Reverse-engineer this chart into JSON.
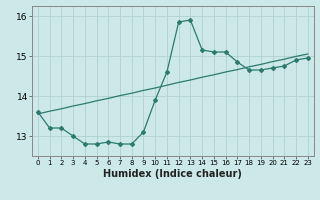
{
  "xlabel": "Humidex (Indice chaleur)",
  "ylabel": "",
  "x_values": [
    0,
    1,
    2,
    3,
    4,
    5,
    6,
    7,
    8,
    9,
    10,
    11,
    12,
    13,
    14,
    15,
    16,
    17,
    18,
    19,
    20,
    21,
    22,
    23
  ],
  "y_curve": [
    13.6,
    13.2,
    13.2,
    13.0,
    12.8,
    12.8,
    12.85,
    12.8,
    12.8,
    13.1,
    13.9,
    14.6,
    15.85,
    15.9,
    15.15,
    15.1,
    15.1,
    14.85,
    14.65,
    14.65,
    14.7,
    14.75,
    14.9,
    14.95
  ],
  "y_linear": [
    13.55,
    13.62,
    13.68,
    13.75,
    13.81,
    13.88,
    13.94,
    14.01,
    14.07,
    14.14,
    14.2,
    14.27,
    14.34,
    14.4,
    14.47,
    14.53,
    14.6,
    14.66,
    14.73,
    14.79,
    14.86,
    14.92,
    14.99,
    15.05
  ],
  "line_color": "#2d7b6f",
  "bg_color": "#cce8e8",
  "grid_color": "#b0d0d0",
  "ylim": [
    12.5,
    16.25
  ],
  "xlim": [
    -0.5,
    23.5
  ],
  "yticks": [
    13,
    14,
    15,
    16
  ],
  "xticks": [
    0,
    1,
    2,
    3,
    4,
    5,
    6,
    7,
    8,
    9,
    10,
    11,
    12,
    13,
    14,
    15,
    16,
    17,
    18,
    19,
    20,
    21,
    22,
    23
  ],
  "xlabel_fontsize": 7,
  "ytick_fontsize": 6.5,
  "xtick_fontsize": 5.0
}
